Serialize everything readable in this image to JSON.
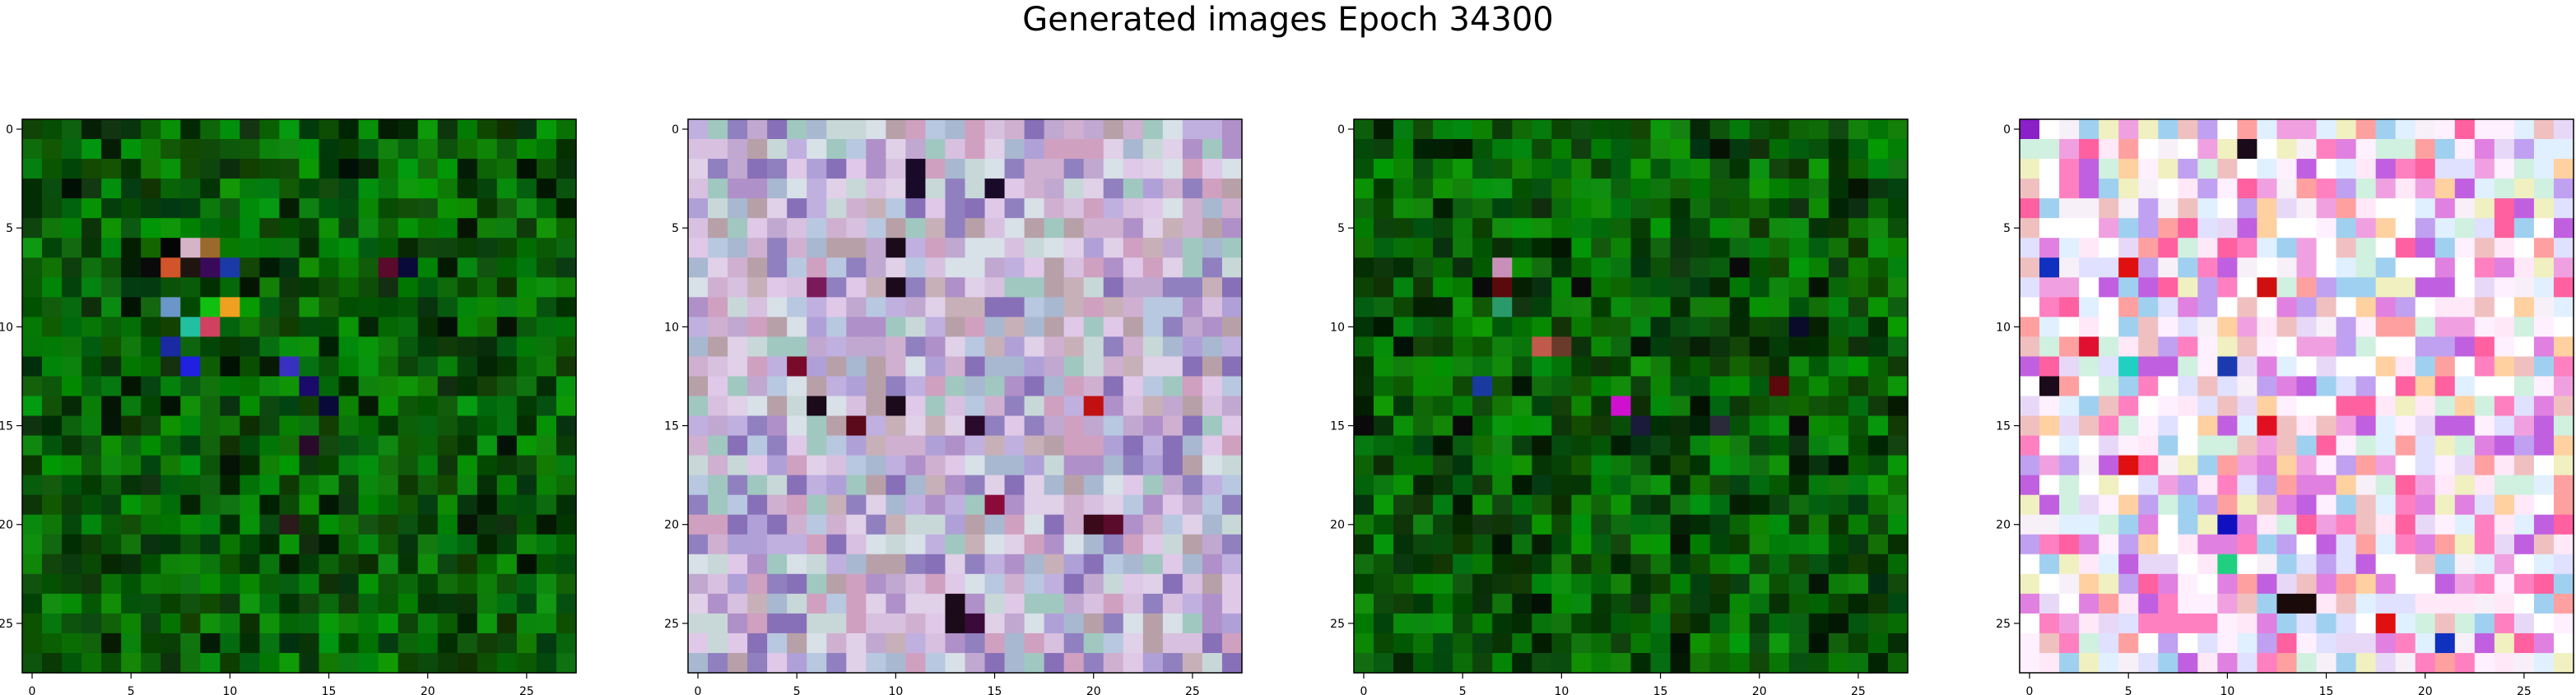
{
  "figure": {
    "title": "Generated images Epoch 34300"
  },
  "chart_data": [
    {
      "type": "heatmap",
      "description_palette": "green",
      "x_ticks": [
        0,
        5,
        10,
        15,
        20,
        25
      ],
      "y_ticks": [
        0,
        5,
        10,
        15,
        20,
        25
      ],
      "xlim": [
        -0.5,
        27.5
      ],
      "ylim": [
        27.5,
        -0.5
      ],
      "grid_size": [
        28,
        28
      ],
      "base_color": "#0b5a0b",
      "highlights": [
        {
          "row": 6,
          "col": 7,
          "color": "#050505"
        },
        {
          "row": 6,
          "col": 8,
          "color": "#d6b4c8"
        },
        {
          "row": 6,
          "col": 9,
          "color": "#9a6a2c"
        },
        {
          "row": 7,
          "col": 6,
          "color": "#0a0a0a"
        },
        {
          "row": 7,
          "col": 7,
          "color": "#d2542a"
        },
        {
          "row": 7,
          "col": 8,
          "color": "#1f1410"
        },
        {
          "row": 7,
          "col": 9,
          "color": "#3a0a5a"
        },
        {
          "row": 7,
          "col": 10,
          "color": "#1a3aa8"
        },
        {
          "row": 7,
          "col": 18,
          "color": "#5a0a2a"
        },
        {
          "row": 7,
          "col": 19,
          "color": "#0a0a3a"
        },
        {
          "row": 9,
          "col": 7,
          "color": "#6a96c8"
        },
        {
          "row": 9,
          "col": 9,
          "color": "#10c010"
        },
        {
          "row": 9,
          "col": 10,
          "color": "#f0a020"
        },
        {
          "row": 10,
          "col": 8,
          "color": "#20c0a0"
        },
        {
          "row": 10,
          "col": 9,
          "color": "#d04060"
        },
        {
          "row": 11,
          "col": 7,
          "color": "#1a2aa0"
        },
        {
          "row": 12,
          "col": 8,
          "color": "#2020e0"
        },
        {
          "row": 12,
          "col": 13,
          "color": "#3a30c0"
        },
        {
          "row": 13,
          "col": 14,
          "color": "#1a0a6a"
        },
        {
          "row": 14,
          "col": 15,
          "color": "#0a0a3a"
        },
        {
          "row": 16,
          "col": 14,
          "color": "#2a0a2a"
        },
        {
          "row": 20,
          "col": 13,
          "color": "#2a1a1a"
        }
      ]
    },
    {
      "type": "heatmap",
      "description_palette": "pastel",
      "x_ticks": [
        0,
        5,
        10,
        15,
        20,
        25
      ],
      "y_ticks": [
        0,
        5,
        10,
        15,
        20,
        25
      ],
      "xlim": [
        -0.5,
        27.5
      ],
      "ylim": [
        27.5,
        -0.5
      ],
      "grid_size": [
        28,
        28
      ],
      "base_color": "#c8b8d8",
      "highlights": [
        {
          "row": 2,
          "col": 11,
          "color": "#1a0a2a"
        },
        {
          "row": 3,
          "col": 11,
          "color": "#1a0a2a"
        },
        {
          "row": 3,
          "col": 15,
          "color": "#1a0a2a"
        },
        {
          "row": 6,
          "col": 10,
          "color": "#1a0a1a"
        },
        {
          "row": 8,
          "col": 6,
          "color": "#7a1a5a"
        },
        {
          "row": 8,
          "col": 10,
          "color": "#1a0a1a"
        },
        {
          "row": 12,
          "col": 5,
          "color": "#7a0a2a"
        },
        {
          "row": 14,
          "col": 6,
          "color": "#1a0a1a"
        },
        {
          "row": 14,
          "col": 10,
          "color": "#1a0a1a"
        },
        {
          "row": 14,
          "col": 20,
          "color": "#c01010"
        },
        {
          "row": 15,
          "col": 8,
          "color": "#5a0a1a"
        },
        {
          "row": 15,
          "col": 14,
          "color": "#2a0a2a"
        },
        {
          "row": 19,
          "col": 15,
          "color": "#8a0a3a"
        },
        {
          "row": 20,
          "col": 20,
          "color": "#3a0a1a"
        },
        {
          "row": 20,
          "col": 21,
          "color": "#5a0a2a"
        },
        {
          "row": 24,
          "col": 13,
          "color": "#1a0a1a"
        },
        {
          "row": 25,
          "col": 13,
          "color": "#1a0a1a"
        },
        {
          "row": 25,
          "col": 14,
          "color": "#3a0a3a"
        }
      ]
    },
    {
      "type": "heatmap",
      "description_palette": "green",
      "x_ticks": [
        0,
        5,
        10,
        15,
        20,
        25
      ],
      "y_ticks": [
        0,
        5,
        10,
        15,
        20,
        25
      ],
      "xlim": [
        -0.5,
        27.5
      ],
      "ylim": [
        27.5,
        -0.5
      ],
      "grid_size": [
        28,
        28
      ],
      "base_color": "#0b5a0b",
      "highlights": [
        {
          "row": 7,
          "col": 7,
          "color": "#c890b8"
        },
        {
          "row": 8,
          "col": 6,
          "color": "#0a0a0a"
        },
        {
          "row": 8,
          "col": 7,
          "color": "#5a0a0a"
        },
        {
          "row": 8,
          "col": 11,
          "color": "#0a0a0a"
        },
        {
          "row": 9,
          "col": 7,
          "color": "#2a9a6a"
        },
        {
          "row": 11,
          "col": 9,
          "color": "#c05a4a"
        },
        {
          "row": 11,
          "col": 10,
          "color": "#6a3a2a"
        },
        {
          "row": 13,
          "col": 6,
          "color": "#1a3aa0"
        },
        {
          "row": 14,
          "col": 13,
          "color": "#d010d0"
        },
        {
          "row": 13,
          "col": 21,
          "color": "#5a0a0a"
        },
        {
          "row": 15,
          "col": 0,
          "color": "#0a0a0a"
        },
        {
          "row": 15,
          "col": 5,
          "color": "#0a0a0a"
        },
        {
          "row": 15,
          "col": 14,
          "color": "#1a1a3a"
        },
        {
          "row": 15,
          "col": 18,
          "color": "#2a2a3a"
        },
        {
          "row": 15,
          "col": 22,
          "color": "#0a0a0a"
        },
        {
          "row": 10,
          "col": 22,
          "color": "#0a0a2a"
        },
        {
          "row": 7,
          "col": 19,
          "color": "#0a0a0a"
        }
      ]
    },
    {
      "type": "heatmap",
      "description_palette": "vivid",
      "x_ticks": [
        0,
        5,
        10,
        15,
        20,
        25
      ],
      "y_ticks": [
        0,
        5,
        10,
        15,
        20,
        25
      ],
      "xlim": [
        -0.5,
        27.5
      ],
      "ylim": [
        27.5,
        -0.5
      ],
      "grid_size": [
        28,
        28
      ],
      "base_color": "#f0e6f0",
      "highlights": [
        {
          "row": 0,
          "col": 0,
          "color": "#8a20c8"
        },
        {
          "row": 1,
          "col": 11,
          "color": "#1a0a1a"
        },
        {
          "row": 7,
          "col": 1,
          "color": "#1030c0"
        },
        {
          "row": 7,
          "col": 5,
          "color": "#e01010"
        },
        {
          "row": 8,
          "col": 12,
          "color": "#d01010"
        },
        {
          "row": 11,
          "col": 3,
          "color": "#e01030"
        },
        {
          "row": 12,
          "col": 5,
          "color": "#20d0c0"
        },
        {
          "row": 12,
          "col": 10,
          "color": "#1a3ab0"
        },
        {
          "row": 13,
          "col": 1,
          "color": "#1a0a1a"
        },
        {
          "row": 15,
          "col": 12,
          "color": "#e01020"
        },
        {
          "row": 17,
          "col": 5,
          "color": "#e01010"
        },
        {
          "row": 20,
          "col": 10,
          "color": "#1010c0"
        },
        {
          "row": 22,
          "col": 10,
          "color": "#20d080"
        },
        {
          "row": 24,
          "col": 13,
          "color": "#1a0a0a"
        },
        {
          "row": 24,
          "col": 14,
          "color": "#1a0a0a"
        },
        {
          "row": 25,
          "col": 18,
          "color": "#e01010"
        },
        {
          "row": 26,
          "col": 21,
          "color": "#1030c0"
        }
      ]
    }
  ]
}
